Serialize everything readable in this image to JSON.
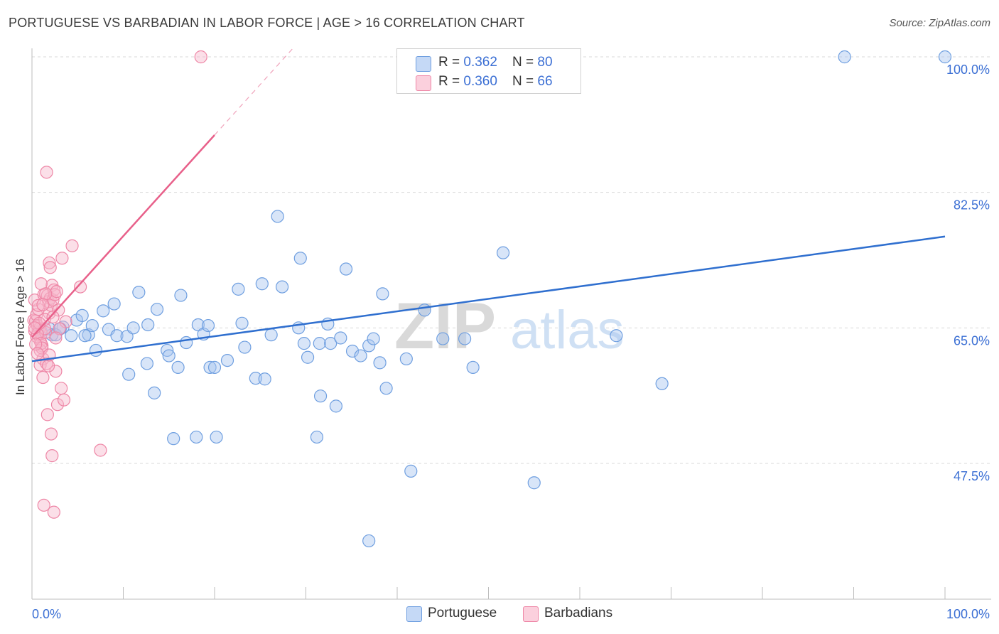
{
  "header": {
    "title": "PORTUGUESE VS BARBADIAN IN LABOR FORCE | AGE > 16 CORRELATION CHART",
    "source": "Source: ZipAtlas.com"
  },
  "watermark": {
    "zip": "ZIP",
    "atlas": "atlas"
  },
  "legend_top": {
    "rows": [
      {
        "r_label": "R = ",
        "r_value": "0.362",
        "n_label": "N = ",
        "n_value": "80",
        "color": "#a9c6f0"
      },
      {
        "r_label": "R = ",
        "r_value": "0.360",
        "n_label": "N = ",
        "n_value": "66",
        "color": "#f7b9cc"
      }
    ]
  },
  "legend_bottom": {
    "items": [
      {
        "label": "Portuguese",
        "color": "#a9c6f0"
      },
      {
        "label": "Barbadians",
        "color": "#f7b9cc"
      }
    ]
  },
  "chart_data": {
    "type": "scatter",
    "title": "PORTUGUESE VS BARBADIAN IN LABOR FORCE | AGE > 16 CORRELATION CHART",
    "xlabel": "",
    "ylabel": "In Labor Force | Age > 16",
    "xlim": [
      0,
      100
    ],
    "ylim": [
      30,
      101.5
    ],
    "x_tick_labels": [
      "0.0%",
      "100.0%"
    ],
    "y_ticks": [
      47.5,
      65.0,
      82.5,
      100.0
    ],
    "y_tick_labels": [
      "47.5%",
      "65.0%",
      "82.5%",
      "100.0%"
    ],
    "grid": true,
    "series": [
      {
        "name": "Portuguese",
        "color": "#6f9fe0",
        "fill": "#a9c6f0",
        "r": 0.362,
        "n": 80,
        "trend": {
          "x": [
            0,
            100
          ],
          "y": [
            60.7,
            76.8
          ],
          "dashed_from": null
        },
        "points": [
          [
            1.0,
            64.6
          ],
          [
            1.9,
            64.9
          ],
          [
            2.2,
            64.1
          ],
          [
            3.4,
            65.1
          ],
          [
            4.3,
            64.0
          ],
          [
            4.9,
            66.0
          ],
          [
            5.5,
            66.6
          ],
          [
            6.2,
            64.1
          ],
          [
            6.6,
            65.3
          ],
          [
            7.0,
            62.1
          ],
          [
            7.8,
            67.2
          ],
          [
            8.4,
            64.8
          ],
          [
            9.0,
            68.1
          ],
          [
            9.3,
            64.0
          ],
          [
            10.4,
            63.9
          ],
          [
            10.6,
            59.0
          ],
          [
            11.1,
            65.0
          ],
          [
            11.7,
            69.6
          ],
          [
            12.6,
            60.4
          ],
          [
            12.7,
            65.4
          ],
          [
            13.4,
            56.6
          ],
          [
            13.7,
            67.4
          ],
          [
            14.8,
            62.1
          ],
          [
            15.0,
            61.4
          ],
          [
            15.5,
            50.7
          ],
          [
            16.0,
            59.9
          ],
          [
            16.3,
            69.2
          ],
          [
            16.9,
            63.1
          ],
          [
            18.2,
            65.4
          ],
          [
            18.8,
            64.2
          ],
          [
            19.3,
            65.3
          ],
          [
            19.5,
            59.9
          ],
          [
            20.0,
            59.9
          ],
          [
            21.4,
            60.8
          ],
          [
            22.6,
            70.0
          ],
          [
            23.0,
            65.6
          ],
          [
            23.3,
            62.5
          ],
          [
            24.5,
            58.5
          ],
          [
            25.2,
            70.7
          ],
          [
            25.5,
            58.4
          ],
          [
            26.2,
            64.1
          ],
          [
            26.9,
            79.4
          ],
          [
            27.4,
            70.3
          ],
          [
            29.2,
            65.0
          ],
          [
            29.8,
            63.0
          ],
          [
            29.4,
            74.0
          ],
          [
            30.2,
            61.2
          ],
          [
            31.2,
            50.9
          ],
          [
            31.5,
            63.0
          ],
          [
            31.6,
            56.2
          ],
          [
            32.4,
            65.5
          ],
          [
            32.7,
            63.0
          ],
          [
            33.3,
            54.9
          ],
          [
            33.8,
            63.7
          ],
          [
            34.4,
            72.6
          ],
          [
            35.1,
            62.0
          ],
          [
            36.0,
            61.4
          ],
          [
            36.9,
            62.7
          ],
          [
            37.4,
            63.6
          ],
          [
            38.1,
            60.5
          ],
          [
            38.4,
            69.4
          ],
          [
            38.8,
            57.2
          ],
          [
            41.0,
            61.0
          ],
          [
            43.0,
            67.3
          ],
          [
            45.0,
            63.6
          ],
          [
            47.4,
            63.6
          ],
          [
            48.3,
            59.9
          ],
          [
            51.6,
            74.7
          ],
          [
            64.0,
            64.0
          ],
          [
            69.0,
            57.8
          ],
          [
            89.0,
            100.0
          ],
          [
            100.0,
            100.0
          ],
          [
            20.2,
            50.9
          ],
          [
            36.9,
            37.5
          ],
          [
            18.0,
            50.9
          ],
          [
            41.5,
            46.5
          ],
          [
            55.0,
            45.0
          ],
          [
            2.6,
            64.1
          ],
          [
            3.1,
            64.9
          ],
          [
            5.8,
            64.0
          ]
        ]
      },
      {
        "name": "Barbadians",
        "color": "#ee86a6",
        "fill": "#f7b9cc",
        "r": 0.36,
        "n": 66,
        "trend": {
          "x": [
            0,
            28.5
          ],
          "y": [
            63.8,
            101.0
          ],
          "solid_until_x": 20.0
        },
        "points": [
          [
            0.2,
            66.0
          ],
          [
            0.3,
            64.6
          ],
          [
            0.4,
            65.9
          ],
          [
            0.5,
            66.7
          ],
          [
            0.6,
            65.3
          ],
          [
            0.7,
            67.4
          ],
          [
            0.3,
            68.6
          ],
          [
            0.8,
            64.9
          ],
          [
            0.9,
            63.3
          ],
          [
            1.0,
            64.3
          ],
          [
            1.1,
            62.7
          ],
          [
            1.2,
            61.0
          ],
          [
            0.5,
            63.9
          ],
          [
            0.9,
            60.2
          ],
          [
            1.3,
            69.3
          ],
          [
            1.5,
            64.4
          ],
          [
            1.6,
            60.4
          ],
          [
            1.7,
            69.2
          ],
          [
            1.8,
            68.4
          ],
          [
            1.9,
            66.9
          ],
          [
            2.0,
            68.8
          ],
          [
            2.1,
            67.9
          ],
          [
            2.2,
            70.5
          ],
          [
            2.3,
            68.6
          ],
          [
            2.4,
            69.9
          ],
          [
            2.5,
            69.3
          ],
          [
            2.6,
            59.4
          ],
          [
            2.7,
            69.7
          ],
          [
            0.9,
            62.1
          ],
          [
            1.4,
            64.9
          ],
          [
            1.0,
            70.7
          ],
          [
            1.2,
            58.6
          ],
          [
            1.6,
            85.1
          ],
          [
            1.9,
            73.4
          ],
          [
            2.0,
            72.8
          ],
          [
            3.3,
            74.0
          ],
          [
            4.4,
            75.6
          ],
          [
            5.3,
            70.3
          ],
          [
            1.7,
            53.8
          ],
          [
            2.1,
            51.3
          ],
          [
            2.2,
            48.5
          ],
          [
            2.8,
            55.1
          ],
          [
            3.2,
            57.2
          ],
          [
            3.5,
            55.7
          ],
          [
            1.3,
            42.1
          ],
          [
            2.4,
            41.2
          ],
          [
            7.5,
            49.2
          ],
          [
            18.5,
            100.0
          ],
          [
            0.6,
            64.2
          ],
          [
            0.7,
            67.9
          ],
          [
            1.0,
            63.0
          ],
          [
            1.4,
            66.1
          ],
          [
            1.8,
            60.1
          ],
          [
            3.7,
            65.8
          ],
          [
            2.9,
            67.3
          ],
          [
            1.1,
            62.4
          ],
          [
            0.4,
            62.9
          ],
          [
            0.8,
            65.6
          ],
          [
            1.5,
            69.4
          ],
          [
            2.3,
            66.4
          ],
          [
            3.0,
            64.9
          ],
          [
            1.2,
            68.0
          ],
          [
            0.6,
            61.7
          ],
          [
            1.9,
            61.5
          ],
          [
            2.6,
            63.7
          ],
          [
            0.3,
            65.0
          ]
        ]
      }
    ]
  }
}
